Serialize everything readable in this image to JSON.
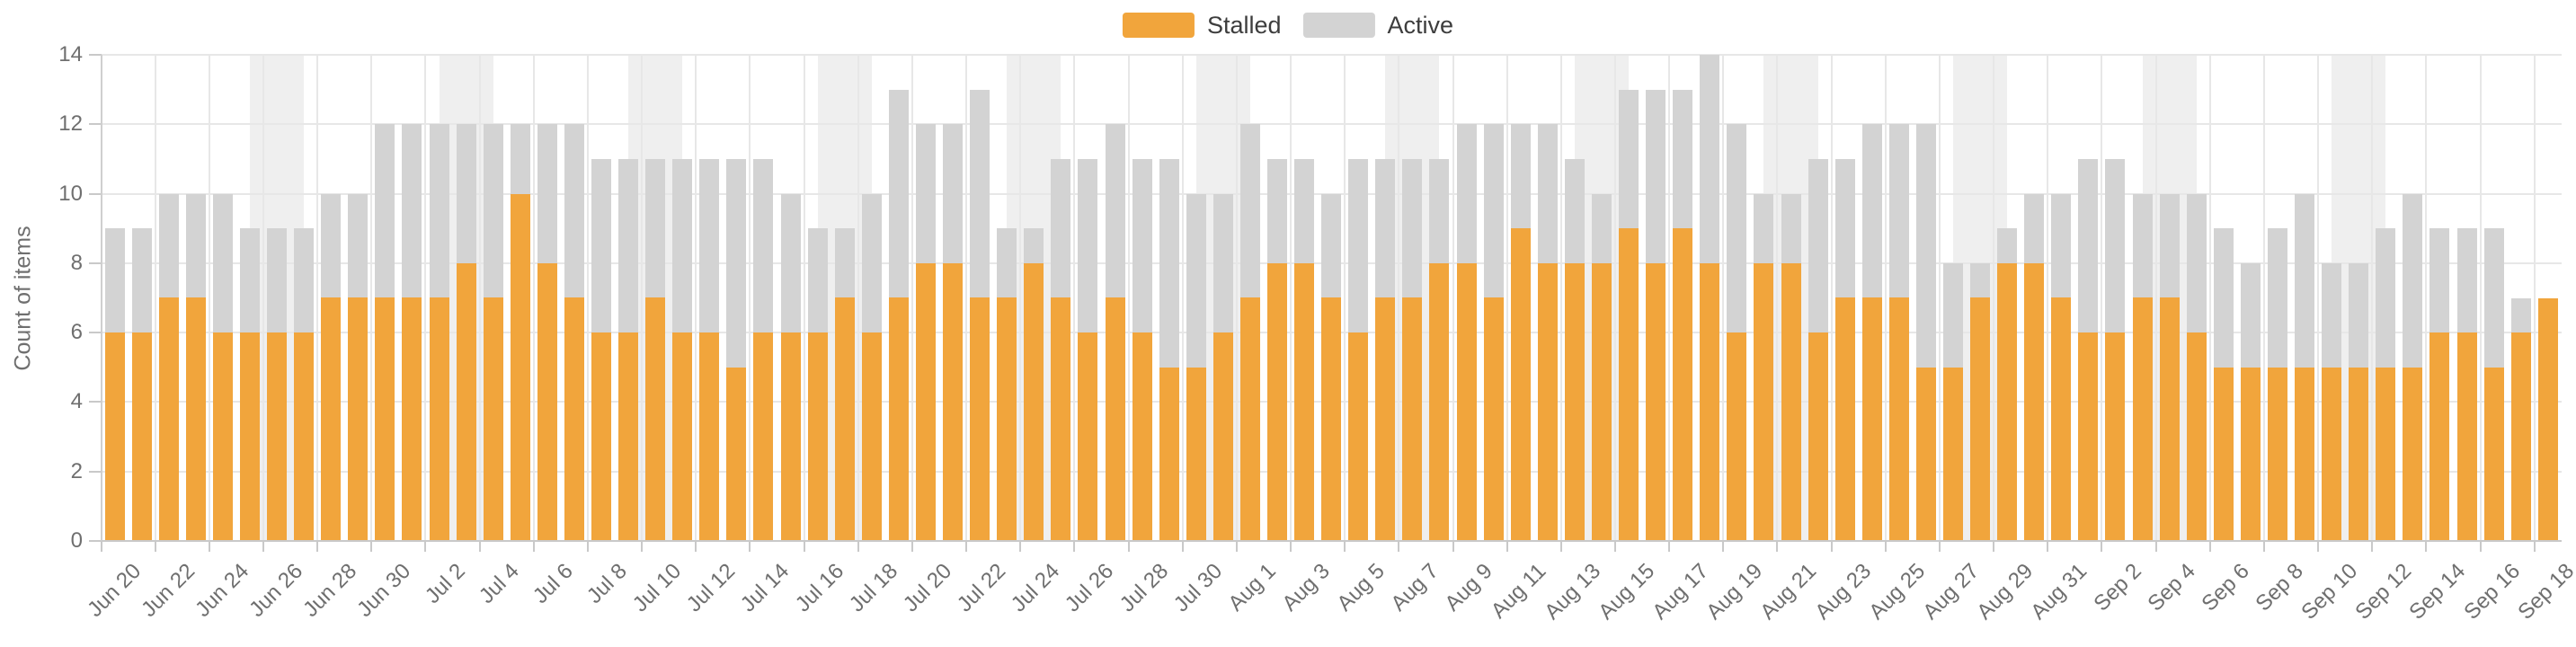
{
  "legend": {
    "items": [
      {
        "label": "Stalled",
        "color": "#F1A53C"
      },
      {
        "label": "Active",
        "color": "#D3D3D3"
      }
    ]
  },
  "chart_data": {
    "type": "bar",
    "stacked": true,
    "title": "",
    "xlabel": "",
    "ylabel": "Count of items",
    "ylim": [
      0,
      14
    ],
    "y_ticks": [
      0,
      2,
      4,
      6,
      8,
      10,
      12,
      14
    ],
    "grid": true,
    "legend_position": "top-center",
    "categories": [
      "Jun 20",
      "Jun 21",
      "Jun 22",
      "Jun 23",
      "Jun 24",
      "Jun 25",
      "Jun 26",
      "Jun 27",
      "Jun 28",
      "Jun 29",
      "Jun 30",
      "Jul 1",
      "Jul 2",
      "Jul 3",
      "Jul 4",
      "Jul 5",
      "Jul 6",
      "Jul 7",
      "Jul 8",
      "Jul 9",
      "Jul 10",
      "Jul 11",
      "Jul 12",
      "Jul 13",
      "Jul 14",
      "Jul 15",
      "Jul 16",
      "Jul 17",
      "Jul 18",
      "Jul 19",
      "Jul 20",
      "Jul 21",
      "Jul 22",
      "Jul 23",
      "Jul 24",
      "Jul 25",
      "Jul 26",
      "Jul 27",
      "Jul 28",
      "Jul 29",
      "Jul 30",
      "Jul 31",
      "Aug 1",
      "Aug 2",
      "Aug 3",
      "Aug 4",
      "Aug 5",
      "Aug 6",
      "Aug 7",
      "Aug 8",
      "Aug 9",
      "Aug 10",
      "Aug 11",
      "Aug 12",
      "Aug 13",
      "Aug 14",
      "Aug 15",
      "Aug 16",
      "Aug 17",
      "Aug 18",
      "Aug 19",
      "Aug 20",
      "Aug 21",
      "Aug 22",
      "Aug 23",
      "Aug 24",
      "Aug 25",
      "Aug 26",
      "Aug 27",
      "Aug 28",
      "Aug 29",
      "Aug 30",
      "Aug 31",
      "Sep 1",
      "Sep 2",
      "Sep 3",
      "Sep 4",
      "Sep 5",
      "Sep 6",
      "Sep 7",
      "Sep 8",
      "Sep 9",
      "Sep 10",
      "Sep 11",
      "Sep 12",
      "Sep 13",
      "Sep 14",
      "Sep 15",
      "Sep 16",
      "Sep 17",
      "Sep 18"
    ],
    "x_tick_labels": [
      "Jun 20",
      "Jun 22",
      "Jun 24",
      "Jun 26",
      "Jun 28",
      "Jun 30",
      "Jul 2",
      "Jul 4",
      "Jul 6",
      "Jul 8",
      "Jul 10",
      "Jul 12",
      "Jul 14",
      "Jul 16",
      "Jul 18",
      "Jul 20",
      "Jul 22",
      "Jul 24",
      "Jul 26",
      "Jul 28",
      "Jul 30",
      "Aug 1",
      "Aug 3",
      "Aug 5",
      "Aug 7",
      "Aug 9",
      "Aug 11",
      "Aug 13",
      "Aug 15",
      "Aug 17",
      "Aug 19",
      "Aug 21",
      "Aug 23",
      "Aug 25",
      "Aug 27",
      "Aug 29",
      "Aug 31",
      "Sep 2",
      "Sep 4",
      "Sep 6",
      "Sep 8",
      "Sep 10",
      "Sep 12",
      "Sep 14",
      "Sep 16",
      "Sep 18"
    ],
    "series": [
      {
        "name": "Stalled",
        "color": "#F1A53C",
        "values": [
          6,
          6,
          7,
          7,
          6,
          6,
          6,
          6,
          7,
          7,
          7,
          7,
          7,
          8,
          7,
          10,
          8,
          7,
          6,
          6,
          7,
          6,
          6,
          5,
          6,
          6,
          6,
          7,
          6,
          7,
          8,
          8,
          7,
          7,
          8,
          7,
          6,
          7,
          6,
          5,
          5,
          6,
          7,
          8,
          8,
          7,
          6,
          7,
          7,
          8,
          8,
          7,
          9,
          8,
          8,
          8,
          9,
          8,
          9,
          8,
          6,
          8,
          8,
          6,
          7,
          7,
          7,
          5,
          5,
          7,
          8,
          8,
          7,
          6,
          6,
          7,
          7,
          6,
          5,
          5,
          5,
          5,
          5,
          5,
          5,
          5,
          6,
          6,
          5,
          6,
          7
        ]
      },
      {
        "name": "Active",
        "color": "#D3D3D3",
        "values": [
          3,
          3,
          3,
          3,
          4,
          3,
          3,
          3,
          3,
          3,
          5,
          5,
          5,
          4,
          5,
          2,
          4,
          5,
          5,
          5,
          4,
          5,
          5,
          6,
          5,
          4,
          3,
          2,
          4,
          6,
          4,
          4,
          6,
          2,
          1,
          4,
          5,
          5,
          5,
          6,
          5,
          4,
          5,
          3,
          3,
          3,
          5,
          4,
          4,
          3,
          4,
          5,
          3,
          4,
          3,
          2,
          4,
          5,
          4,
          6,
          6,
          2,
          2,
          5,
          4,
          5,
          5,
          7,
          3,
          1,
          1,
          2,
          3,
          5,
          5,
          3,
          3,
          4,
          4,
          3,
          4,
          5,
          3,
          3,
          4,
          5,
          3,
          3,
          4,
          1,
          0
        ]
      }
    ],
    "weekend_bands": {
      "color": "#EFEFEF",
      "start_days": [
        "Jun 25",
        "Jul 2",
        "Jul 9",
        "Jul 16",
        "Jul 23",
        "Jul 30",
        "Aug 6",
        "Aug 13",
        "Aug 20",
        "Aug 27",
        "Sep 3",
        "Sep 10"
      ]
    }
  }
}
